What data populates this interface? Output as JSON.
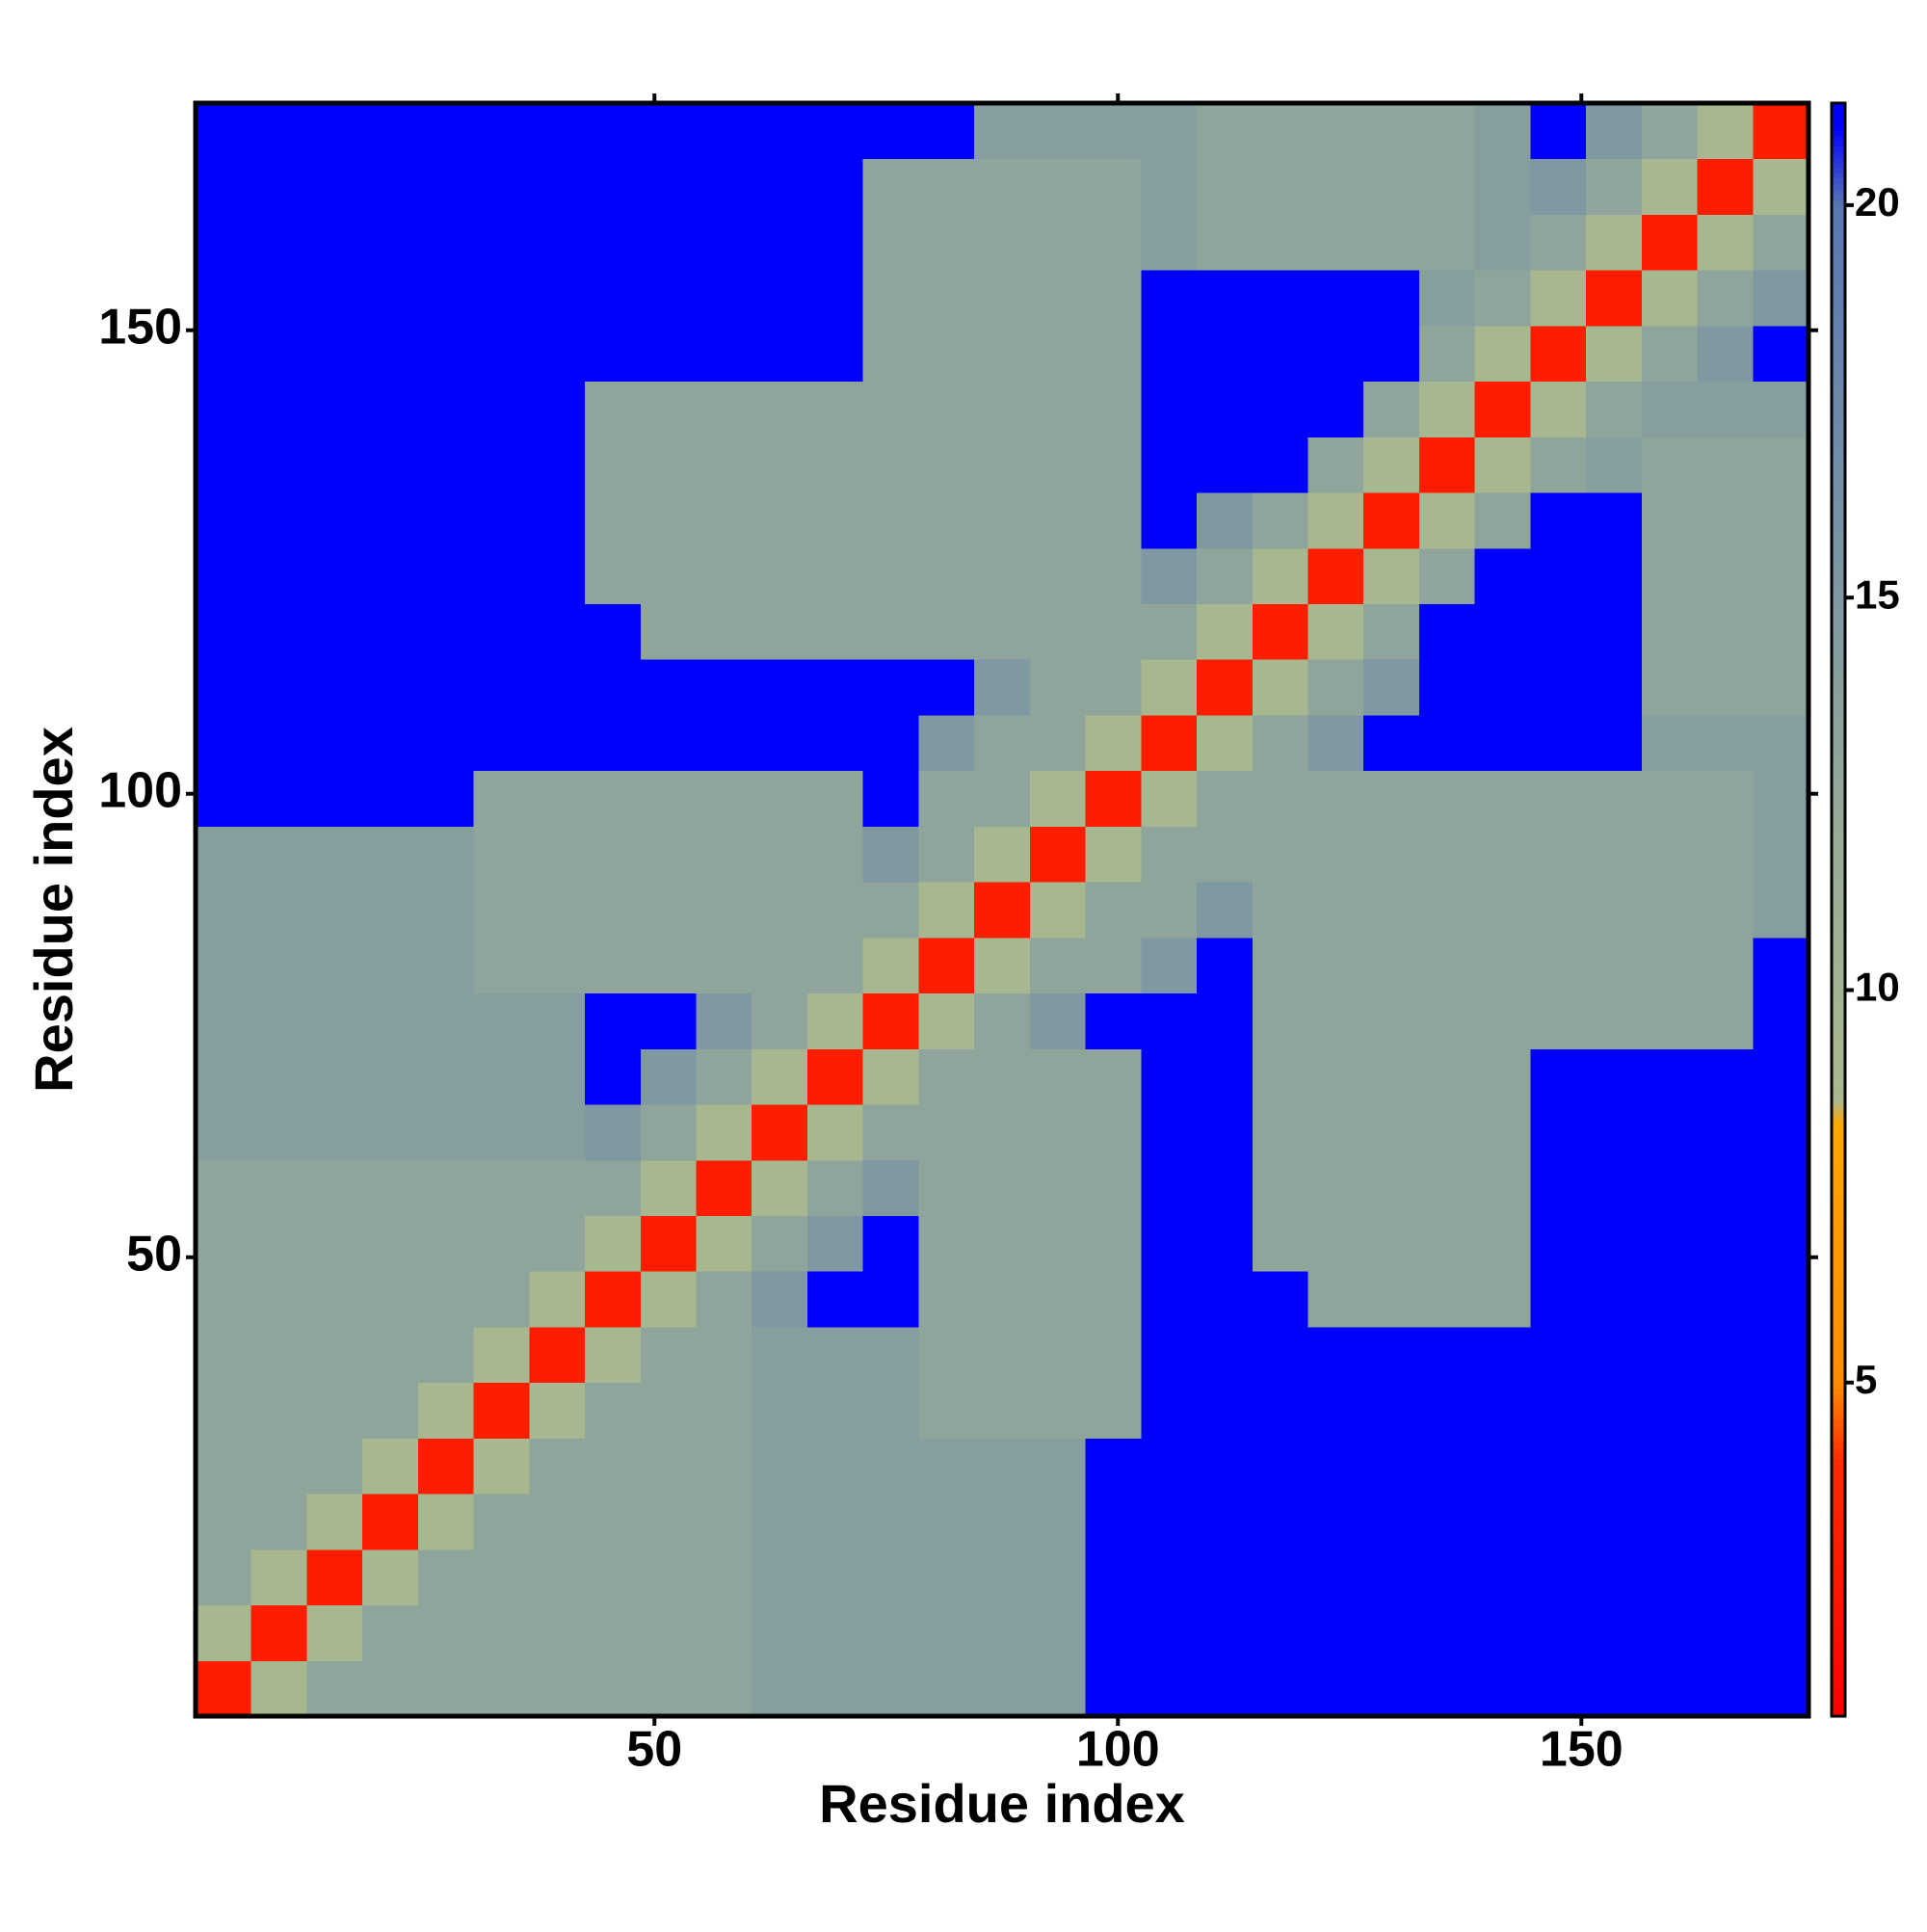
{
  "chart_data": {
    "type": "heatmap",
    "xlabel": "Residue index",
    "ylabel": "Residue index",
    "x_bins": [
      0.5,
      6.5,
      12.5,
      18.5,
      24.5,
      30.5,
      36.5,
      42.5,
      48.5,
      54.5,
      60.5,
      66.5,
      72.5,
      78.5,
      84.5,
      90.5,
      96.5,
      102.5,
      108.5,
      114.5,
      120.5,
      126.5,
      132.5,
      138.5,
      144.5,
      150.5,
      156.5,
      162.5,
      168.5,
      174.5
    ],
    "y_bins": [
      0.5,
      6.5,
      12.5,
      18.5,
      24.5,
      30.5,
      36.5,
      42.5,
      48.5,
      54.5,
      60.5,
      66.5,
      72.5,
      78.5,
      84.5,
      90.5,
      96.5,
      102.5,
      108.5,
      114.5,
      120.5,
      126.5,
      132.5,
      138.5,
      144.5,
      150.5,
      156.5,
      162.5,
      168.5,
      174.5
    ],
    "xlim": [
      0.5,
      174.5
    ],
    "ylim": [
      0.5,
      174.5
    ],
    "xticks": [
      50,
      100,
      150
    ],
    "yticks": [
      50,
      100,
      150
    ],
    "values": [
      [
        3,
        9,
        13,
        13,
        13,
        13,
        13,
        13,
        13,
        13,
        14,
        14,
        14,
        14,
        14,
        14,
        21,
        21,
        21,
        21,
        21,
        21,
        21,
        21,
        21,
        21,
        21,
        21,
        21
      ],
      [
        9,
        3,
        9,
        13,
        13,
        13,
        13,
        13,
        13,
        13,
        14,
        14,
        14,
        14,
        14,
        14,
        21,
        21,
        21,
        21,
        21,
        21,
        21,
        21,
        21,
        21,
        21,
        21,
        21
      ],
      [
        13,
        9,
        3,
        9,
        13,
        13,
        13,
        13,
        13,
        13,
        14,
        14,
        14,
        14,
        14,
        14,
        21,
        21,
        21,
        21,
        21,
        21,
        21,
        21,
        21,
        21,
        21,
        21,
        21
      ],
      [
        13,
        13,
        9,
        3,
        9,
        13,
        13,
        13,
        13,
        13,
        14,
        14,
        14,
        14,
        14,
        14,
        21,
        21,
        21,
        21,
        21,
        21,
        21,
        21,
        21,
        21,
        21,
        21,
        21
      ],
      [
        13,
        13,
        13,
        9,
        3,
        9,
        13,
        13,
        13,
        13,
        14,
        14,
        14,
        14,
        14,
        14,
        21,
        21,
        21,
        21,
        21,
        21,
        21,
        21,
        21,
        21,
        21,
        21,
        21
      ],
      [
        13,
        13,
        13,
        13,
        9,
        3,
        9,
        13,
        13,
        13,
        14,
        14,
        14,
        13,
        13,
        13,
        13,
        21,
        21,
        21,
        21,
        21,
        21,
        21,
        21,
        21,
        21,
        21,
        21
      ],
      [
        13,
        13,
        13,
        13,
        13,
        9,
        3,
        9,
        13,
        13,
        14,
        14,
        14,
        13,
        13,
        13,
        13,
        21,
        21,
        21,
        21,
        21,
        21,
        21,
        21,
        21,
        21,
        21,
        21
      ],
      [
        13,
        13,
        13,
        13,
        13,
        13,
        9,
        3,
        9,
        13,
        15,
        21,
        21,
        13,
        13,
        13,
        13,
        21,
        21,
        21,
        13,
        13,
        13,
        13,
        21,
        21,
        21,
        21,
        21
      ],
      [
        13,
        13,
        13,
        13,
        13,
        13,
        13,
        9,
        3,
        9,
        13,
        15,
        21,
        13,
        13,
        13,
        13,
        21,
        21,
        13,
        13,
        13,
        13,
        13,
        21,
        21,
        21,
        21,
        21
      ],
      [
        13,
        13,
        13,
        13,
        13,
        13,
        13,
        13,
        9,
        3,
        9,
        13,
        15,
        13,
        13,
        13,
        13,
        21,
        21,
        13,
        13,
        13,
        13,
        13,
        21,
        21,
        21,
        21,
        21
      ],
      [
        14,
        14,
        14,
        14,
        14,
        14,
        14,
        15,
        13,
        9,
        3,
        9,
        13,
        13,
        13,
        13,
        13,
        21,
        21,
        13,
        13,
        13,
        13,
        13,
        21,
        21,
        21,
        21,
        21
      ],
      [
        14,
        14,
        14,
        14,
        14,
        14,
        14,
        21,
        15,
        13,
        9,
        3,
        9,
        13,
        13,
        13,
        13,
        21,
        21,
        13,
        13,
        13,
        13,
        13,
        21,
        21,
        21,
        21,
        21
      ],
      [
        14,
        14,
        14,
        14,
        14,
        14,
        14,
        21,
        21,
        15,
        13,
        9,
        3,
        9,
        13,
        15,
        21,
        21,
        21,
        13,
        13,
        13,
        13,
        13,
        13,
        13,
        13,
        13,
        21
      ],
      [
        14,
        14,
        14,
        14,
        14,
        13,
        13,
        13,
        13,
        13,
        13,
        13,
        9,
        3,
        9,
        13,
        13,
        15,
        21,
        13,
        13,
        13,
        13,
        13,
        13,
        13,
        13,
        13,
        21
      ],
      [
        14,
        14,
        14,
        14,
        14,
        13,
        13,
        13,
        13,
        13,
        13,
        13,
        13,
        9,
        3,
        9,
        13,
        13,
        15,
        13,
        13,
        13,
        13,
        13,
        13,
        13,
        13,
        13,
        14
      ],
      [
        14,
        14,
        14,
        14,
        14,
        13,
        13,
        13,
        13,
        13,
        13,
        13,
        15,
        13,
        9,
        3,
        9,
        13,
        13,
        13,
        13,
        13,
        13,
        13,
        13,
        13,
        13,
        13,
        14
      ],
      [
        21,
        21,
        21,
        21,
        21,
        13,
        13,
        13,
        13,
        13,
        13,
        13,
        21,
        13,
        13,
        9,
        3,
        9,
        13,
        13,
        13,
        13,
        13,
        13,
        13,
        13,
        13,
        13,
        14
      ],
      [
        21,
        21,
        21,
        21,
        21,
        21,
        21,
        21,
        21,
        21,
        21,
        21,
        21,
        15,
        13,
        13,
        9,
        3,
        9,
        13,
        15,
        21,
        21,
        21,
        21,
        21,
        14,
        14,
        14
      ],
      [
        21,
        21,
        21,
        21,
        21,
        21,
        21,
        21,
        21,
        21,
        21,
        21,
        21,
        21,
        15,
        13,
        13,
        9,
        3,
        9,
        13,
        15,
        21,
        21,
        21,
        21,
        13,
        13,
        13
      ],
      [
        21,
        21,
        21,
        21,
        21,
        21,
        21,
        21,
        13,
        13,
        13,
        13,
        13,
        13,
        13,
        13,
        13,
        13,
        9,
        3,
        9,
        13,
        21,
        21,
        21,
        21,
        13,
        13,
        13
      ],
      [
        21,
        21,
        21,
        21,
        21,
        21,
        21,
        13,
        13,
        13,
        13,
        13,
        13,
        13,
        13,
        13,
        13,
        15,
        13,
        9,
        3,
        9,
        13,
        21,
        21,
        21,
        13,
        13,
        13
      ],
      [
        21,
        21,
        21,
        21,
        21,
        21,
        21,
        13,
        13,
        13,
        13,
        13,
        13,
        13,
        13,
        13,
        13,
        21,
        15,
        13,
        9,
        3,
        9,
        13,
        21,
        21,
        13,
        13,
        13
      ],
      [
        21,
        21,
        21,
        21,
        21,
        21,
        21,
        13,
        13,
        13,
        13,
        13,
        13,
        13,
        13,
        13,
        13,
        21,
        21,
        21,
        13,
        9,
        3,
        9,
        13,
        14,
        13,
        13,
        13
      ],
      [
        21,
        21,
        21,
        21,
        21,
        21,
        21,
        13,
        13,
        13,
        13,
        13,
        13,
        13,
        13,
        13,
        13,
        21,
        21,
        21,
        21,
        13,
        9,
        3,
        9,
        13,
        14,
        14,
        14
      ],
      [
        21,
        21,
        21,
        21,
        21,
        21,
        21,
        21,
        21,
        21,
        21,
        21,
        13,
        13,
        13,
        13,
        13,
        21,
        21,
        21,
        21,
        21,
        13,
        9,
        3,
        9,
        13,
        15,
        21
      ],
      [
        21,
        21,
        21,
        21,
        21,
        21,
        21,
        21,
        21,
        21,
        21,
        21,
        13,
        13,
        13,
        13,
        13,
        21,
        21,
        21,
        21,
        21,
        14,
        13,
        9,
        3,
        9,
        13,
        15
      ],
      [
        21,
        21,
        21,
        21,
        21,
        21,
        21,
        21,
        21,
        21,
        21,
        21,
        13,
        13,
        13,
        13,
        13,
        14,
        13,
        13,
        13,
        13,
        13,
        14,
        13,
        9,
        3,
        9,
        13
      ],
      [
        21,
        21,
        21,
        21,
        21,
        21,
        21,
        21,
        21,
        21,
        21,
        21,
        13,
        13,
        13,
        13,
        13,
        14,
        13,
        13,
        13,
        13,
        13,
        14,
        15,
        13,
        9,
        3,
        9
      ],
      [
        21,
        21,
        21,
        21,
        21,
        21,
        21,
        21,
        21,
        21,
        21,
        21,
        21,
        21,
        14,
        14,
        14,
        14,
        13,
        13,
        13,
        13,
        13,
        14,
        21,
        15,
        13,
        9,
        3
      ]
    ],
    "colorscale": [
      [
        0.75,
        "#ff0000"
      ],
      [
        4,
        "#ff2a00"
      ],
      [
        5,
        "#ff8c00"
      ],
      [
        8.3,
        "#ffa500"
      ],
      [
        8.6,
        "#a9b98e"
      ],
      [
        12,
        "#97ab97"
      ],
      [
        20,
        "#5878b4"
      ],
      [
        21,
        "#0000ff"
      ]
    ],
    "colorbar": {
      "lim": [
        0.75,
        21.3
      ],
      "ticks": [
        5,
        10,
        15,
        20
      ]
    }
  }
}
